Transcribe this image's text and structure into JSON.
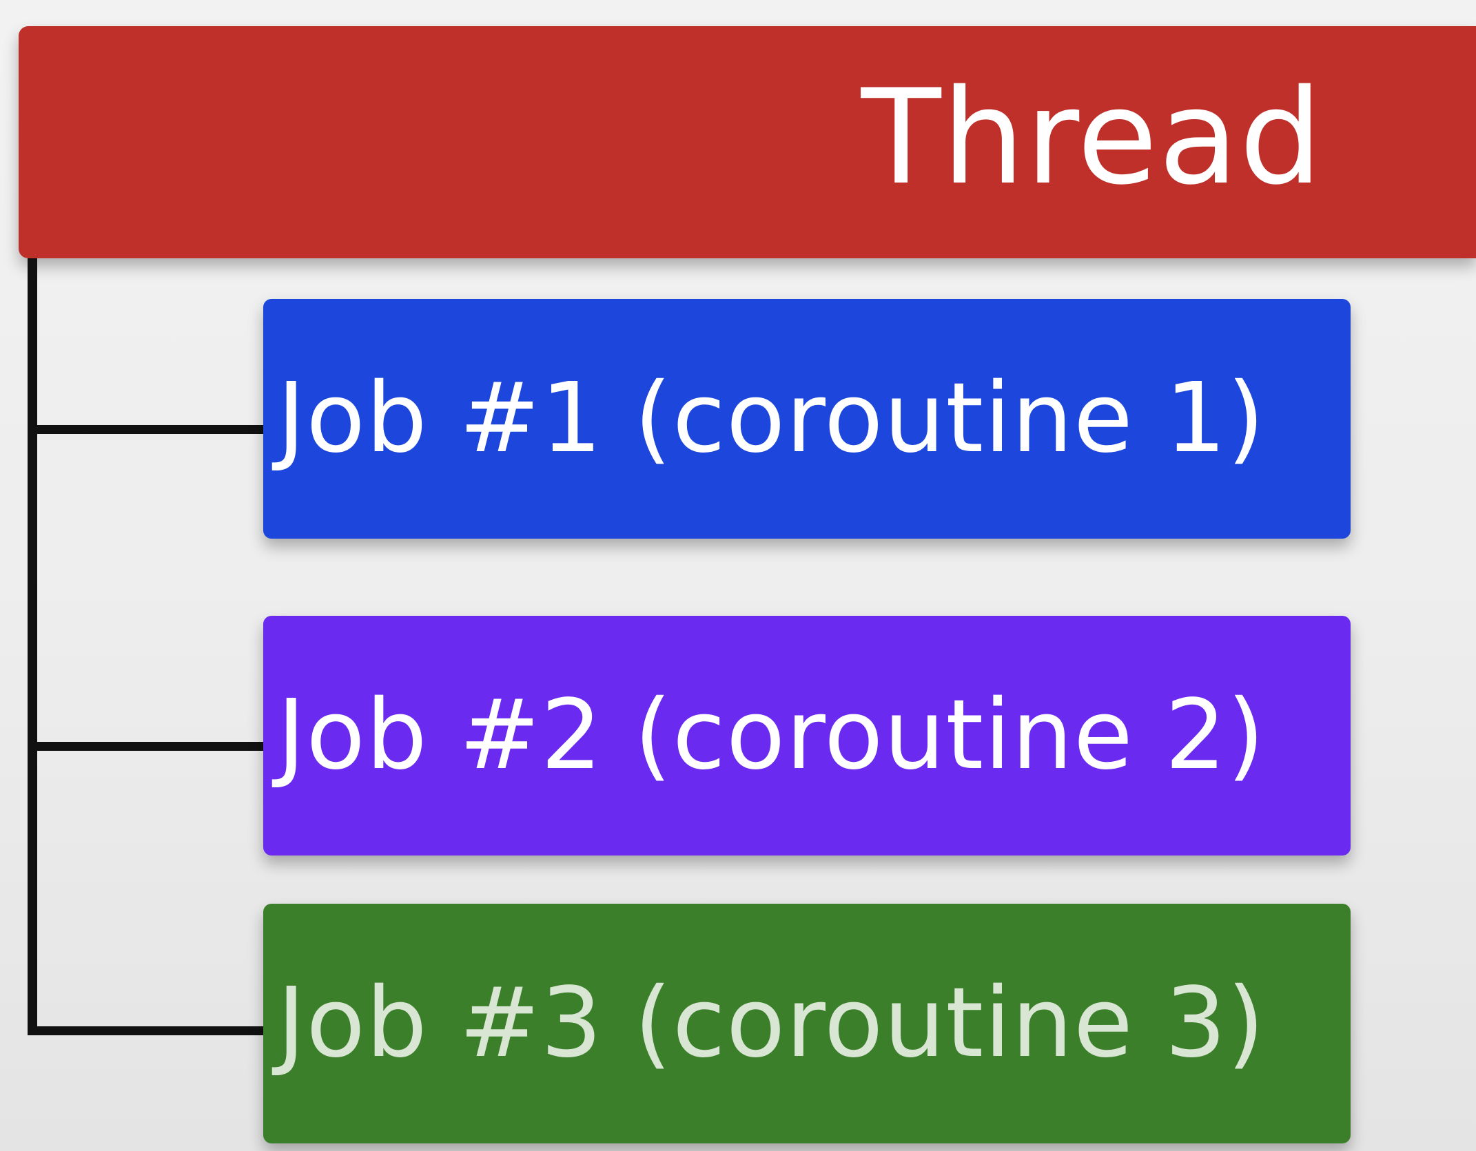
{
  "thread": {
    "label": "Thread",
    "color": "#c0302b"
  },
  "jobs": [
    {
      "label": "Job #1 (coroutine 1)",
      "color": "#1c46dc",
      "text_color": "#ffffff"
    },
    {
      "label": "Job #2 (coroutine 2)",
      "color": "#6a2af0",
      "text_color": "#ffffff"
    },
    {
      "label": "Job #3 (coroutine 3)",
      "color": "#3c7f2a",
      "text_color": "#d9e6d4"
    }
  ],
  "connector_color": "#111111"
}
